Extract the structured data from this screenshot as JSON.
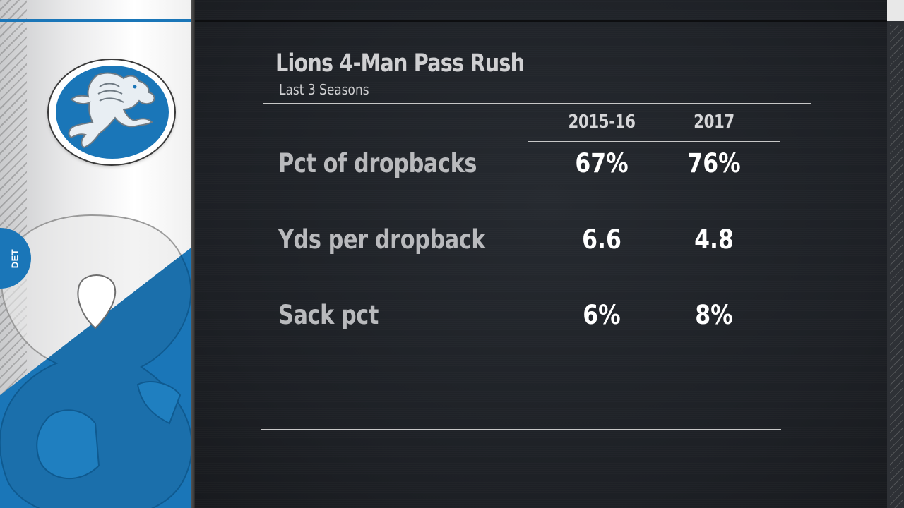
{
  "team": {
    "abbr": "DET",
    "logo": "lions-logo",
    "colors": {
      "primary": "#1a76b8",
      "secondary": "#b0b7bc"
    }
  },
  "header": {
    "title": "Lions 4-Man Pass Rush",
    "subtitle": "Last 3 Seasons"
  },
  "table": {
    "columns": [
      "2015-16",
      "2017"
    ],
    "rows": [
      {
        "label": "Pct of dropbacks",
        "values": [
          "67%",
          "76%"
        ]
      },
      {
        "label": "Yds per dropback",
        "values": [
          "6.6",
          "4.8"
        ]
      },
      {
        "label": "Sack pct",
        "values": [
          "6%",
          "8%"
        ]
      }
    ]
  }
}
